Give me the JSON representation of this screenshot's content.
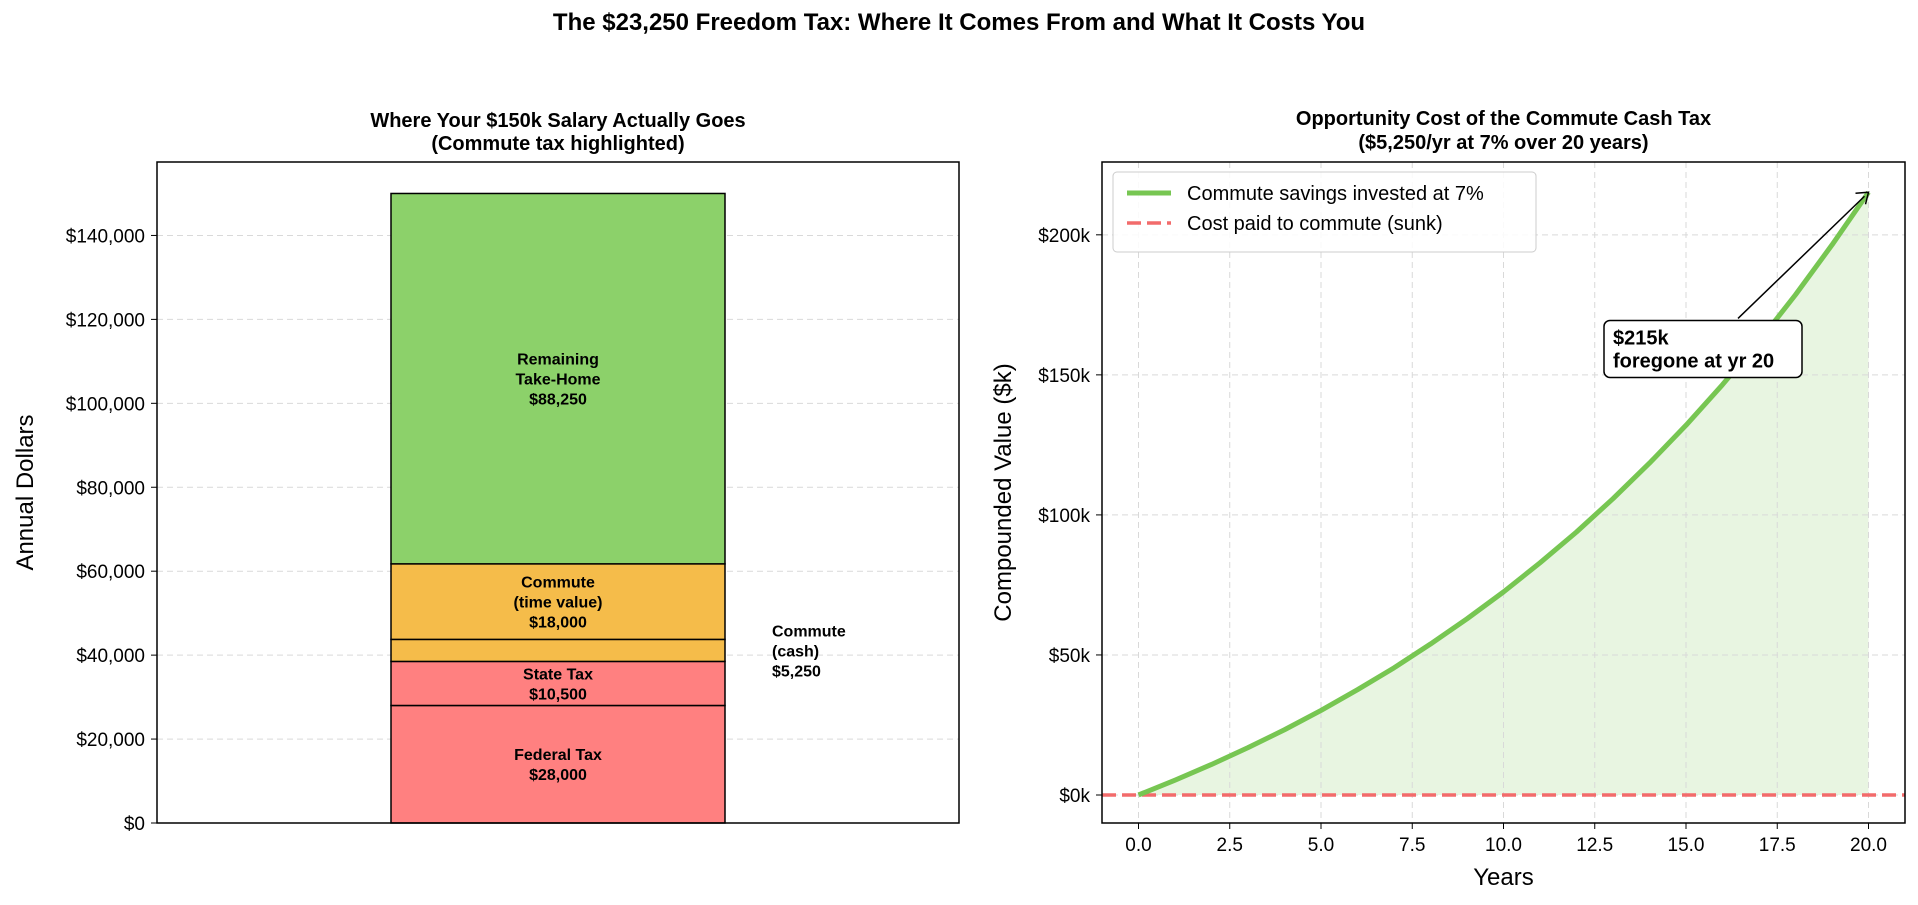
{
  "suptitle": "The $23,250 Freedom Tax: Where It Comes From and What It Costs You",
  "charts": [
    {
      "type": "bar",
      "stacked": true,
      "title_line1": "Where Your $150k Salary Actually Goes",
      "title_line2": "(Commute tax highlighted)",
      "xlabel": "",
      "ylabel": "Annual Dollars",
      "ylim": [
        0,
        157500
      ],
      "yticks": [
        0,
        20000,
        40000,
        60000,
        80000,
        100000,
        120000,
        140000
      ],
      "ytick_labels": [
        "$0",
        "$20,000",
        "$40,000",
        "$60,000",
        "$80,000",
        "$100,000",
        "$120,000",
        "$140,000"
      ],
      "grid": "y-dashed",
      "segments": [
        {
          "name": "Federal Tax",
          "value": 28000,
          "color": "#ff8080",
          "label_lines": [
            "Federal Tax",
            "$28,000"
          ],
          "label_side": "inside"
        },
        {
          "name": "State Tax",
          "value": 10500,
          "color": "#ff8080",
          "label_lines": [
            "State Tax",
            "$10,500"
          ],
          "label_side": "inside"
        },
        {
          "name": "Commute (cash)",
          "value": 5250,
          "color": "#f5bc4a",
          "label_lines": [
            "Commute",
            "(cash)",
            "$5,250"
          ],
          "label_side": "outside"
        },
        {
          "name": "Commute (time value)",
          "value": 18000,
          "color": "#f5bc4a",
          "label_lines": [
            "Commute",
            "(time value)",
            "$18,000"
          ],
          "label_side": "inside"
        },
        {
          "name": "Remaining Take-Home",
          "value": 88250,
          "color": "#8cd16a",
          "label_lines": [
            "Remaining",
            "Take-Home",
            "$88,250"
          ],
          "label_side": "inside"
        }
      ]
    },
    {
      "type": "line",
      "title_line1": "Opportunity Cost of the Commute Cash Tax",
      "title_line2": "($5,250/yr at 7% over 20 years)",
      "xlabel": "Years",
      "ylabel": "Compounded Value ($k)",
      "xlim": [
        -1,
        21
      ],
      "ylim": [
        -10,
        226
      ],
      "xticks": [
        0,
        2.5,
        5,
        7.5,
        10,
        12.5,
        15,
        17.5,
        20
      ],
      "xtick_labels": [
        "0.0",
        "2.5",
        "5.0",
        "7.5",
        "10.0",
        "12.5",
        "15.0",
        "17.5",
        "20.0"
      ],
      "yticks": [
        0,
        50,
        100,
        150,
        200
      ],
      "ytick_labels": [
        "$0k",
        "$50k",
        "$100k",
        "$150k",
        "$200k"
      ],
      "grid": "both-dashed",
      "legend_position": "top-left",
      "series": [
        {
          "name": "Commute savings invested at 7%",
          "color": "#77c652",
          "style": "solid",
          "fill": "#e8f5e1",
          "x": [
            0,
            1,
            2,
            3,
            4,
            5,
            6,
            7,
            8,
            9,
            10,
            11,
            12,
            13,
            14,
            15,
            16,
            17,
            18,
            19,
            20
          ],
          "y": [
            0,
            5.3,
            10.9,
            16.9,
            23.3,
            30.2,
            37.6,
            45.4,
            53.9,
            62.9,
            72.5,
            82.9,
            93.9,
            105.8,
            118.5,
            132.0,
            146.5,
            162.0,
            178.6,
            196.4,
            215.2
          ]
        },
        {
          "name": "Cost paid to commute (sunk)",
          "color": "#f26b6b",
          "style": "dashed",
          "x": [
            -1,
            21
          ],
          "y": [
            0,
            0
          ]
        }
      ],
      "annotation": {
        "lines": [
          "$215k",
          "foregone at yr 20"
        ],
        "point": [
          20,
          215.2
        ],
        "text_at": [
          13,
          158
        ]
      }
    }
  ]
}
